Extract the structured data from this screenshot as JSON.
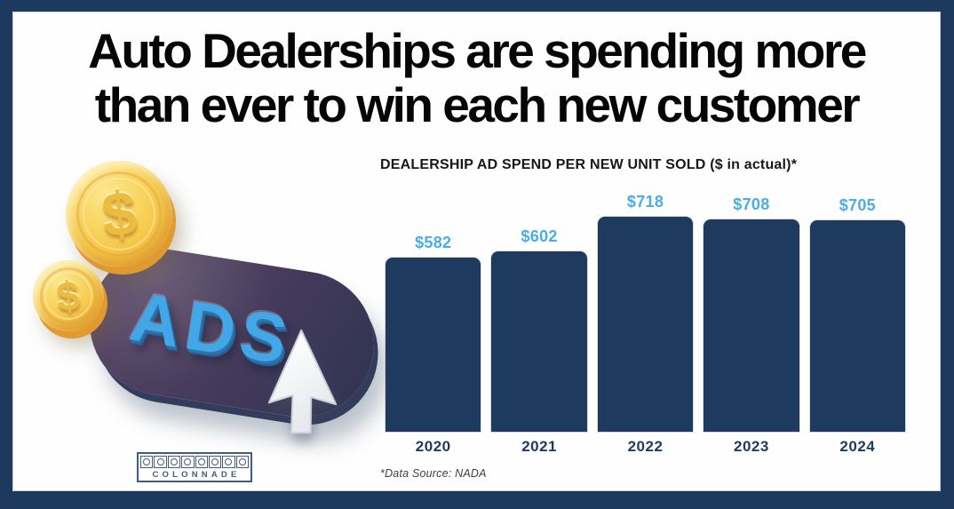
{
  "headline": {
    "line1": "Auto Dealerships are spending more",
    "line2": "than ever to win each new customer"
  },
  "chart_data": {
    "type": "bar",
    "title": "DEALERSHIP AD SPEND PER NEW UNIT SOLD ($ in actual)*",
    "categories": [
      "2020",
      "2021",
      "2022",
      "2023",
      "2024"
    ],
    "values": [
      582,
      602,
      718,
      708,
      705
    ],
    "value_labels": [
      "$582",
      "$602",
      "$718",
      "$708",
      "$705"
    ],
    "xlabel": "",
    "ylabel": "",
    "ylim": [
      0,
      760
    ],
    "grid": false,
    "legend": "none",
    "value_labels_position": "above-bars",
    "source_note": "*Data Source: NADA"
  },
  "illustration": {
    "ads_label": "ADS",
    "coin_symbol": "$"
  },
  "brand": {
    "name": "COLONNADE",
    "squares": 8
  },
  "colors": {
    "frame_navy": "#1d3a5e",
    "bar_navy": "#1e3a5f",
    "value_label_blue": "#4aace8",
    "ads_blue": "#41a7e6",
    "coin_gold": "#f6ca4a",
    "pill_purple": "#4c3e5e",
    "logo_blue": "#3f5c82"
  }
}
